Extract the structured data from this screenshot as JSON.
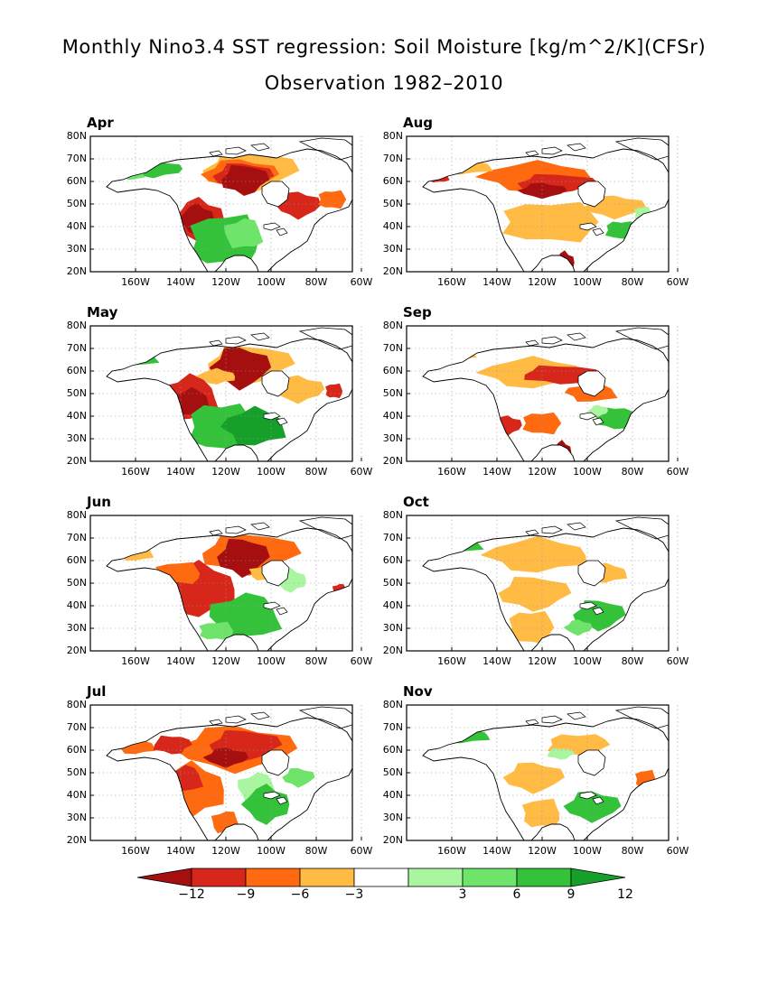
{
  "title": {
    "line1": "Monthly Nino3.4 SST regression: Soil Moisture [kg/m^2/K](CFSr)",
    "line2": "Observation 1982–2010"
  },
  "axes": {
    "lat_labels": [
      "80N",
      "70N",
      "60N",
      "50N",
      "40N",
      "30N",
      "20N"
    ],
    "lon_labels": [
      "160W",
      "140W",
      "120W",
      "100W",
      "80W",
      "60W"
    ]
  },
  "panels": [
    {
      "id": "apr",
      "label": "Apr"
    },
    {
      "id": "aug",
      "label": "Aug"
    },
    {
      "id": "may",
      "label": "May"
    },
    {
      "id": "sep",
      "label": "Sep"
    },
    {
      "id": "jun",
      "label": "Jun"
    },
    {
      "id": "oct",
      "label": "Oct"
    },
    {
      "id": "jul",
      "label": "Jul"
    },
    {
      "id": "nov",
      "label": "Nov"
    }
  ],
  "colorbar": {
    "labels": [
      "−12",
      "−9",
      "−6",
      "−3",
      "3",
      "6",
      "9",
      "12"
    ],
    "colors": [
      "#a50f0f",
      "#d7261a",
      "#ff6a10",
      "#ffbb44",
      "#ffffff",
      "#aaf5a0",
      "#6fe46a",
      "#35c23b",
      "#16a02a"
    ]
  },
  "colors": {
    "dry_strong": "#a50f0f",
    "dry": "#d7261a",
    "dry_moderate": "#ff6a10",
    "dry_weak": "#ffbb44",
    "wet_weak": "#aaf5a0",
    "wet_moderate": "#6fe46a",
    "wet": "#35c23b",
    "wet_strong": "#16a02a"
  }
}
